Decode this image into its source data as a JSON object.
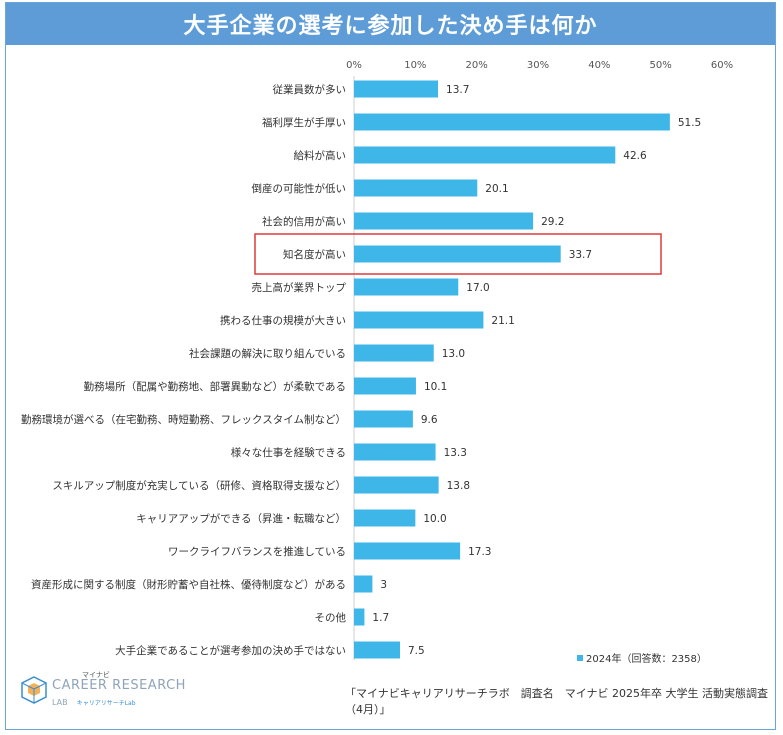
{
  "title": "大手企業の選考に参加した決め手は何か",
  "chart_data": {
    "type": "bar",
    "orientation": "horizontal",
    "x_ticks": [
      "0%",
      "10%",
      "20%",
      "30%",
      "40%",
      "50%",
      "60%"
    ],
    "xlim": [
      0,
      60
    ],
    "categories": [
      "従業員数が多い",
      "福利厚生が手厚い",
      "給料が高い",
      "倒産の可能性が低い",
      "社会的信用が高い",
      "知名度が高い",
      "売上高が業界トップ",
      "携わる仕事の規模が大きい",
      "社会課題の解決に取り組んでいる",
      "勤務場所（配属や勤務地、部署異動など）が柔軟である",
      "勤務環境が選べる（在宅勤務、時短勤務、フレックスタイム制など）",
      "様々な仕事を経験できる",
      "スキルアップ制度が充実している（研修、資格取得支援など）",
      "キャリアアップができる（昇進・転職など）",
      "ワークライフバランスを推進している",
      "資産形成に関する制度（財形貯蓄や自社株、優待制度など）がある",
      "その他",
      "大手企業であることが選考参加の決め手ではない"
    ],
    "values": [
      13.7,
      51.5,
      42.6,
      20.1,
      29.2,
      33.7,
      17.0,
      21.1,
      13.0,
      10.1,
      9.6,
      13.3,
      13.8,
      10.0,
      17.3,
      3,
      1.7,
      7.5
    ],
    "value_labels": [
      "13.7",
      "51.5",
      "42.6",
      "20.1",
      "29.2",
      "33.7",
      "17.0",
      "21.1",
      "13.0",
      "10.1",
      "9.6",
      "13.3",
      "13.8",
      "10.0",
      "17.3",
      "3",
      "1.7",
      "7.5"
    ],
    "series": [
      {
        "name": "2024年（回答数：2358）"
      }
    ],
    "highlighted_category": "知名度が高い",
    "bar_color": "#3eb6e8",
    "highlight_color": "#e03a3a",
    "legend_position": "bottom-right",
    "grid": false
  },
  "legend": {
    "label": "2024年（回答数：2358）"
  },
  "footer": {
    "logo_small": "マイナビ",
    "logo_main": "CAREER RESEARCH",
    "logo_sub": "LAB",
    "logo_sub2": "キャリアリサーチLab",
    "source": "「マイナビキャリアリサーチラボ　調査名　マイナビ 2025年卒 大学生 活動実態調査（4月）」"
  }
}
